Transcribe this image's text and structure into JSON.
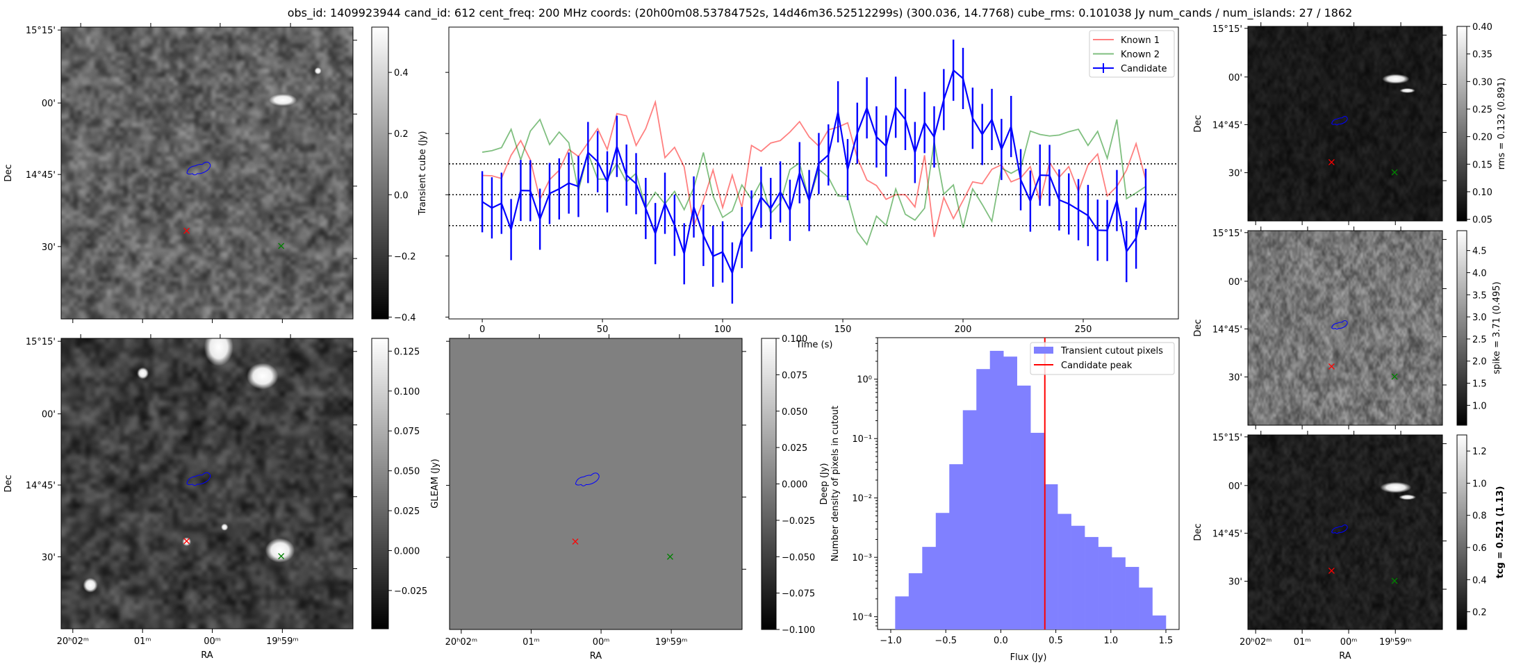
{
  "title": "obs_id: 1409923944 cand_id: 612 cent_freq: 200 MHz coords: (20h00m08.53784752s, 14d46m36.52512299s) (300.036, 14.7768) cube_rms: 0.101038 Jy num_cands / num_islands: 27 / 1862",
  "sky_axes": {
    "xlabel": "RA",
    "ylabel": "Dec",
    "dec_ticks": [
      "15°15'",
      "00'",
      "14°45'",
      "30'"
    ],
    "ra_ticks": [
      "20ʰ02ᵐ",
      "01ᵐ",
      "00ᵐ",
      "19ʰ59ᵐ"
    ]
  },
  "colors": {
    "candidate_marker": "#ff0000",
    "known_marker": "#008000",
    "island_contour": "#0000ff",
    "known1": "#ff0000",
    "known2": "#008000",
    "candidate": "#0000ff",
    "histogram": "#8080ff",
    "peak_line": "#ff0000"
  },
  "colorbars": [
    {
      "label": "Transient cube (Jy)",
      "range": [
        -0.406,
        0.548
      ],
      "ticks": [
        {
          "v": 0.4,
          "label": "0.4"
        },
        {
          "v": 0.2,
          "label": "0.2"
        },
        {
          "v": 0.0,
          "label": "0.0"
        },
        {
          "v": -0.2,
          "label": "−0.2"
        },
        {
          "v": -0.4,
          "label": "−0.4"
        }
      ]
    },
    {
      "label": "GLEAM (Jy)",
      "range": [
        -0.049,
        0.133
      ],
      "ticks": [
        {
          "v": 0.125,
          "label": "0.125"
        },
        {
          "v": 0.1,
          "label": "0.100"
        },
        {
          "v": 0.075,
          "label": "0.075"
        },
        {
          "v": 0.05,
          "label": "0.050"
        },
        {
          "v": 0.025,
          "label": "0.025"
        },
        {
          "v": 0.0,
          "label": "0.000"
        },
        {
          "v": -0.025,
          "label": "−0.025"
        }
      ]
    },
    {
      "label": "Deep (Jy)",
      "range": [
        -0.1,
        0.1
      ],
      "ticks": [
        {
          "v": 0.1,
          "label": "0.100"
        },
        {
          "v": 0.075,
          "label": "0.075"
        },
        {
          "v": 0.05,
          "label": "0.050"
        },
        {
          "v": 0.025,
          "label": "0.025"
        },
        {
          "v": 0.0,
          "label": "0.000"
        },
        {
          "v": -0.025,
          "label": "−0.025"
        },
        {
          "v": -0.05,
          "label": "−0.050"
        },
        {
          "v": -0.075,
          "label": "−0.075"
        },
        {
          "v": -0.1,
          "label": "−0.100"
        }
      ]
    },
    {
      "label": "rms = 0.132 (0.891)",
      "range": [
        0.047,
        0.4
      ],
      "ticks": [
        {
          "v": 0.4,
          "label": "0.40"
        },
        {
          "v": 0.35,
          "label": "0.35"
        },
        {
          "v": 0.3,
          "label": "0.30"
        },
        {
          "v": 0.25,
          "label": "0.25"
        },
        {
          "v": 0.2,
          "label": "0.20"
        },
        {
          "v": 0.15,
          "label": "0.15"
        },
        {
          "v": 0.1,
          "label": "0.10"
        },
        {
          "v": 0.05,
          "label": "0.05"
        }
      ]
    },
    {
      "label": "spike = 3.71 (0.495)",
      "range": [
        0.55,
        4.95
      ],
      "ticks": [
        {
          "v": 4.5,
          "label": "4.5"
        },
        {
          "v": 4.0,
          "label": "4.0"
        },
        {
          "v": 3.5,
          "label": "3.5"
        },
        {
          "v": 3.0,
          "label": "3.0"
        },
        {
          "v": 2.5,
          "label": "2.5"
        },
        {
          "v": 2.0,
          "label": "2.0"
        },
        {
          "v": 1.5,
          "label": "1.5"
        },
        {
          "v": 1.0,
          "label": "1.0"
        }
      ]
    },
    {
      "label": "tcg = 0.521 (1.13)",
      "range": [
        0.09,
        1.3
      ],
      "ticks": [
        {
          "v": 1.2,
          "label": "1.2"
        },
        {
          "v": 1.0,
          "label": "1.0"
        },
        {
          "v": 0.8,
          "label": "0.8"
        },
        {
          "v": 0.6,
          "label": "0.6"
        },
        {
          "v": 0.4,
          "label": "0.4"
        },
        {
          "v": 0.2,
          "label": "0.2"
        }
      ]
    }
  ],
  "chart_data": [
    {
      "type": "line",
      "title": "",
      "xlabel": "Time (s)",
      "ylabel": "",
      "xlim": [
        -13.9,
        289.6
      ],
      "ylim": [
        -0.406,
        0.548
      ],
      "xticks": [
        {
          "v": 0,
          "label": "0"
        },
        {
          "v": 50,
          "label": "50"
        },
        {
          "v": 100,
          "label": "100"
        },
        {
          "v": 150,
          "label": "150"
        },
        {
          "v": 200,
          "label": "200"
        },
        {
          "v": 250,
          "label": "250"
        }
      ],
      "yticks": [
        -0.4,
        -0.2,
        0.0,
        0.2,
        0.4
      ],
      "reference_lines": [
        -0.101038,
        0.0,
        0.101038
      ],
      "legend_position": "top-right",
      "x": [
        0,
        4,
        8,
        12,
        16,
        20,
        24,
        28,
        32,
        36,
        40,
        44,
        48,
        52,
        56,
        60,
        64,
        68,
        72,
        76,
        80,
        84,
        88,
        92,
        96,
        100,
        104,
        108,
        112,
        116,
        120,
        124,
        128,
        132,
        136,
        140,
        144,
        148,
        152,
        156,
        160,
        164,
        168,
        172,
        176,
        180,
        184,
        188,
        192,
        196,
        200,
        204,
        208,
        212,
        216,
        220,
        224,
        228,
        232,
        236,
        240,
        244,
        248,
        252,
        256,
        260,
        264,
        268,
        272,
        276
      ],
      "series": [
        {
          "name": "Known 1",
          "values": [
            0.063,
            0.062,
            0.053,
            0.129,
            0.177,
            0.114,
            -0.015,
            0.049,
            0.08,
            0.148,
            0.125,
            0.17,
            0.216,
            0.148,
            0.265,
            0.258,
            0.161,
            0.216,
            0.303,
            0.121,
            0.155,
            0.091,
            -0.102,
            -0.019,
            0.081,
            -0.042,
            0.064,
            -0.042,
            0.161,
            0.142,
            0.169,
            0.177,
            0.205,
            0.239,
            0.189,
            0.159,
            0.212,
            0.221,
            0.235,
            0.121,
            0.048,
            0.03,
            -0.015,
            0.0,
            0.0,
            -0.04,
            0.129,
            -0.138,
            -0.009,
            -0.078,
            -0.019,
            0.042,
            0.036,
            0.083,
            0.098,
            0.042,
            0.055,
            0.092,
            -0.023,
            0.105,
            0.057,
            0.092,
            0.011,
            0.097,
            0.133,
            -0.004,
            0.027,
            0.08,
            0.167,
            0.049
          ]
        },
        {
          "name": "Known 2",
          "values": [
            0.139,
            0.144,
            0.154,
            0.214,
            0.114,
            0.208,
            0.246,
            0.164,
            0.205,
            0.17,
            0.013,
            0.136,
            0.051,
            0.051,
            0.102,
            0.042,
            0.07,
            -0.043,
            0.008,
            -0.03,
            0.011,
            -0.049,
            0.023,
            0.138,
            -0.004,
            -0.074,
            -0.053,
            0.032,
            -0.015,
            0.044,
            -0.061,
            -0.027,
            0.082,
            0.104,
            -0.019,
            0.083,
            0.057,
            -0.004,
            -0.006,
            -0.121,
            -0.163,
            -0.07,
            -0.1,
            0.019,
            -0.064,
            -0.083,
            -0.044,
            0.174,
            0.002,
            0.032,
            -0.108,
            0.019,
            -0.032,
            -0.087,
            0.087,
            0.07,
            0.087,
            0.208,
            0.197,
            0.192,
            0.195,
            0.206,
            0.214,
            0.161,
            0.207,
            0.119,
            0.246,
            -0.013,
            0.006,
            0.027
          ]
        },
        {
          "name": "Candidate",
          "values": [
            -0.023,
            -0.043,
            -0.028,
            -0.114,
            0.014,
            0.013,
            -0.08,
            0.004,
            0.019,
            0.038,
            0.027,
            0.138,
            0.108,
            0.042,
            0.158,
            0.064,
            0.036,
            -0.045,
            -0.127,
            -0.028,
            -0.1,
            -0.193,
            -0.04,
            -0.133,
            -0.201,
            -0.187,
            -0.256,
            -0.14,
            -0.086,
            -0.008,
            -0.045,
            0.009,
            -0.051,
            0.072,
            -0.019,
            0.102,
            0.13,
            0.271,
            0.082,
            0.201,
            0.284,
            0.189,
            0.159,
            0.286,
            0.246,
            0.138,
            0.236,
            0.189,
            0.311,
            0.407,
            0.38,
            0.25,
            0.197,
            0.246,
            0.148,
            0.223,
            0.049,
            -0.021,
            0.064,
            0.063,
            -0.017,
            -0.03,
            -0.049,
            -0.068,
            -0.116,
            -0.117,
            -0.019,
            -0.186,
            -0.142,
            -0.015
          ],
          "yerr": 0.1
        }
      ]
    },
    {
      "type": "bar",
      "title": "",
      "xlabel": "Flux (Jy)",
      "ylabel": "Number density of pixels in cutout",
      "yscale": "log",
      "xlim": [
        -1.12,
        1.62
      ],
      "ylim": [
        6.1e-05,
        5.0
      ],
      "xticks": [
        {
          "v": -1.0,
          "label": "−1.0"
        },
        {
          "v": -0.5,
          "label": "−0.5"
        },
        {
          "v": 0.0,
          "label": "0.0"
        },
        {
          "v": 0.5,
          "label": "0.5"
        },
        {
          "v": 1.0,
          "label": "1.0"
        },
        {
          "v": 1.5,
          "label": "1.5"
        }
      ],
      "yticks": [
        {
          "v": 1,
          "label": "10⁰"
        },
        {
          "v": 0.1,
          "label": "10⁻¹"
        },
        {
          "v": 0.01,
          "label": "10⁻²"
        },
        {
          "v": 0.001,
          "label": "10⁻³"
        },
        {
          "v": 0.0001,
          "label": "10⁻⁴"
        }
      ],
      "bin_edges": [
        -0.96,
        -0.837,
        -0.714,
        -0.591,
        -0.468,
        -0.345,
        -0.222,
        -0.099,
        0.024,
        0.147,
        0.27,
        0.393,
        0.516,
        0.639,
        0.762,
        0.885,
        1.008,
        1.131,
        1.254,
        1.377,
        1.5
      ],
      "values": [
        0.00022,
        0.00054,
        0.0015,
        0.0056,
        0.037,
        0.3,
        1.48,
        3.0,
        2.4,
        0.78,
        0.125,
        0.017,
        0.0054,
        0.0034,
        0.0022,
        0.0015,
        0.001,
        0.00069,
        0.00031,
        0.000105
      ],
      "series_name": "Transient cutout pixels",
      "peak_name": "Candidate peak",
      "peak_value": 0.4,
      "legend_position": "top-right"
    }
  ]
}
